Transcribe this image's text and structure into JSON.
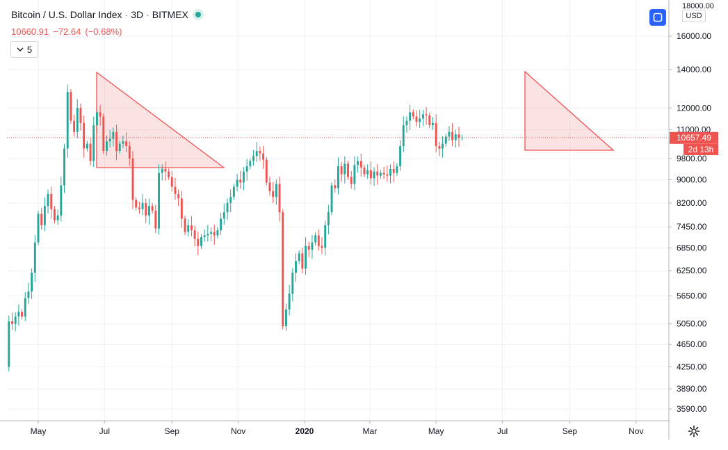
{
  "header": {
    "symbol": "Bitcoin / U.S. Dollar Index",
    "interval": "3D",
    "exchange": "BITMEX",
    "sep": "·",
    "last": "10660.91",
    "change": "−72.64",
    "change_pct": "(−0.68%)",
    "indicator_count": "5"
  },
  "price_scale": {
    "currency": "USD",
    "top_label": "18000.00",
    "last_label": "10657.49",
    "countdown": "2d 13h"
  },
  "colors": {
    "up": "#26a69a",
    "down": "#ef5350",
    "grid": "#eef1f6",
    "triangle_fill": "rgba(239,83,80,0.16)",
    "triangle_stroke": "#ef5350",
    "accent": "#2962ff"
  },
  "icons": {
    "collapse": "chevron-down-icon",
    "fit": "auto-scale-icon",
    "settings": "gear-icon"
  },
  "chart_data": {
    "type": "candlestick",
    "title": "Bitcoin / U.S. Dollar Index",
    "y_scale": "log",
    "y_ticks": [
      16000,
      14000,
      12000,
      11000,
      9800,
      9000,
      8200,
      7450,
      6850,
      6250,
      5650,
      5050,
      4650,
      4250,
      3890,
      3590
    ],
    "x_ticks": [
      {
        "label": "May",
        "date": "2019-05-01"
      },
      {
        "label": "Jul",
        "date": "2019-07-01"
      },
      {
        "label": "Sep",
        "date": "2019-09-01"
      },
      {
        "label": "Nov",
        "date": "2019-11-01"
      },
      {
        "label": "2020",
        "date": "2020-01-01",
        "bold": true
      },
      {
        "label": "Mar",
        "date": "2020-03-01"
      },
      {
        "label": "May",
        "date": "2020-05-01"
      },
      {
        "label": "Jul",
        "date": "2020-07-01"
      },
      {
        "label": "Sep",
        "date": "2020-09-01"
      },
      {
        "label": "Nov",
        "date": "2020-11-01"
      }
    ],
    "candle_interval_days": 3,
    "first_candle_date": "2019-04-01",
    "last_price": 10657.49,
    "grid": true,
    "closes": [
      4250,
      5100,
      5050,
      5200,
      5300,
      5200,
      5600,
      5750,
      6200,
      7000,
      7850,
      7500,
      8100,
      8500,
      8000,
      7650,
      7800,
      8800,
      10200,
      12800,
      11400,
      10900,
      12000,
      11300,
      10200,
      10400,
      9700,
      11200,
      11800,
      11600,
      10100,
      10500,
      10600,
      10900,
      10100,
      10400,
      10500,
      10300,
      9800,
      8300,
      8050,
      8000,
      8200,
      7800,
      8100,
      7950,
      7400,
      9250,
      9400,
      9300,
      9100,
      8750,
      8500,
      8350,
      7700,
      7300,
      7500,
      7350,
      7100,
      6900,
      7150,
      7200,
      7250,
      7300,
      7200,
      7350,
      7700,
      7900,
      8200,
      8400,
      8750,
      9000,
      8900,
      9300,
      9500,
      9700,
      9900,
      10100,
      10000,
      9750,
      8900,
      8600,
      8400,
      8850,
      7900,
      5000,
      5350,
      5700,
      6200,
      6500,
      6700,
      6300,
      6900,
      6800,
      7000,
      7200,
      6900,
      6850,
      7500,
      7900,
      8800,
      8700,
      9500,
      9200,
      9600,
      9100,
      8850,
      9550,
      9700,
      9450,
      9200,
      9350,
      9050,
      9300,
      9150,
      9250,
      9200,
      9150,
      9400,
      9250,
      9500,
      10300,
      11200,
      11400,
      11800,
      11600,
      11350,
      11500,
      11700,
      11650,
      11200,
      11300,
      10300,
      10200,
      10400,
      10700,
      10900,
      10550,
      10800,
      10650,
      10657.49
    ]
  }
}
